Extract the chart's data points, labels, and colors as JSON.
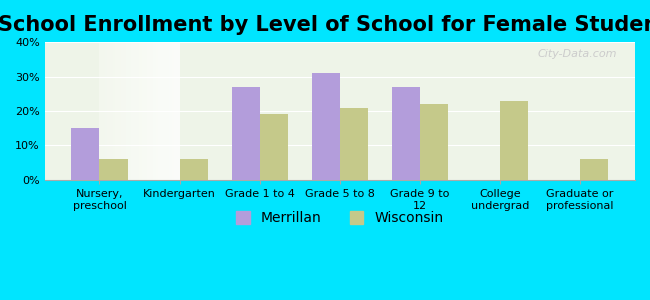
{
  "title": "School Enrollment by Level of School for Female Students",
  "categories": [
    "Nursery,\npreschool",
    "Kindergarten",
    "Grade 1 to 4",
    "Grade 5 to 8",
    "Grade 9 to\n12",
    "College\nundergrad",
    "Graduate or\nprofessional"
  ],
  "merrillan": [
    15,
    0,
    27,
    31,
    27,
    0,
    0
  ],
  "wisconsin": [
    6,
    6,
    19,
    21,
    22,
    23,
    6
  ],
  "merrillan_color": "#b39ddb",
  "wisconsin_color": "#c5c98a",
  "ylim": [
    0,
    40
  ],
  "yticks": [
    0,
    10,
    20,
    30,
    40
  ],
  "background_color": "#00e5ff",
  "plot_bg_start": "#e8f5e9",
  "plot_bg_end": "#ffffff",
  "title_fontsize": 15,
  "tick_fontsize": 8,
  "legend_fontsize": 10,
  "bar_width": 0.35,
  "watermark": "City-Data.com"
}
